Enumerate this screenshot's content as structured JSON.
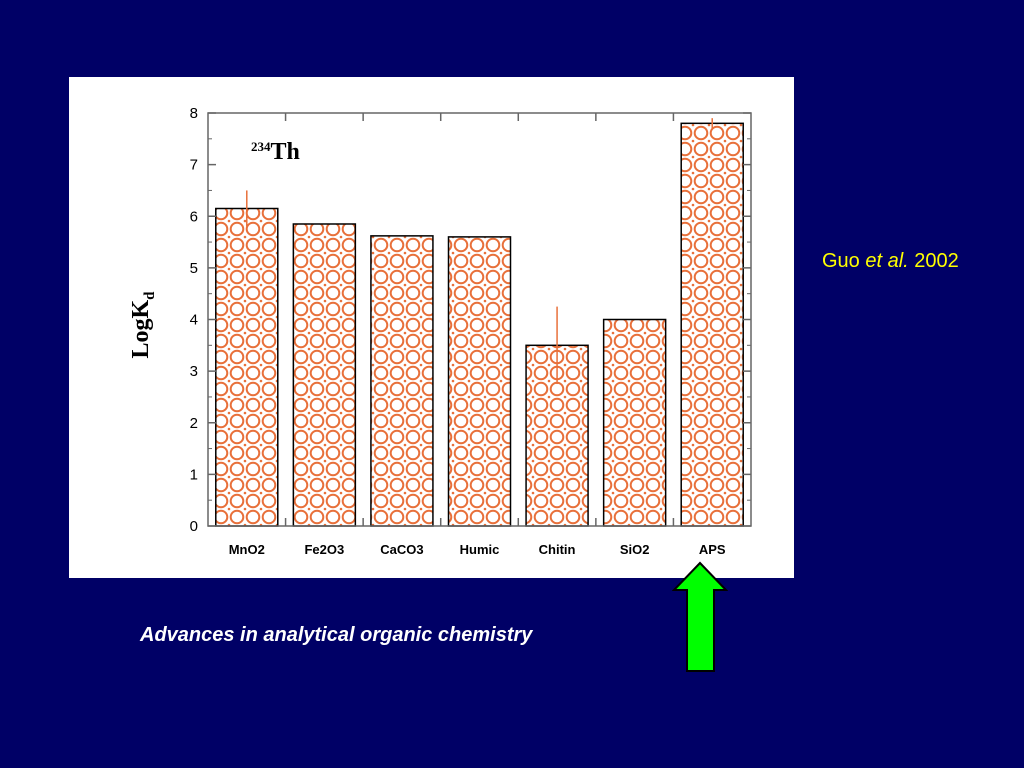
{
  "slide": {
    "background": "#000066",
    "citation": {
      "author": "Guo",
      "etal": "et al.",
      "year": "2002",
      "color": "#ffff00"
    },
    "caption": "Advances in analytical organic chemistry",
    "arrow": {
      "icon": "up-arrow-icon",
      "color": "#00ff00",
      "points_to": "APS"
    }
  },
  "chart_data": {
    "type": "bar",
    "annotation": {
      "mass_number": "234",
      "element": "Th"
    },
    "ylabel": {
      "main": "LogK",
      "sub": "d"
    },
    "xlabel": "",
    "categories": [
      "MnO2",
      "Fe2O3",
      "CaCO3",
      "Humic",
      "Chitin",
      "SiO2",
      "APS"
    ],
    "values": [
      6.15,
      5.85,
      5.62,
      5.6,
      3.5,
      4.0,
      7.8
    ],
    "errors": [
      0.35,
      0.02,
      0.02,
      0.0,
      0.75,
      0.02,
      0.1
    ],
    "ylim": [
      0,
      8
    ],
    "yticks": [
      0,
      1,
      2,
      3,
      4,
      5,
      6,
      7,
      8
    ],
    "grid": false,
    "bar_fill_color": "#e8703a",
    "error_bar_color": "#e8703a"
  }
}
